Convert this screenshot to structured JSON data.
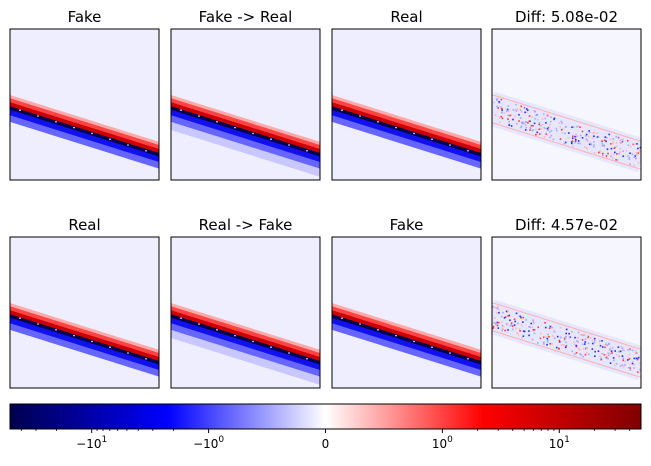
{
  "chart_data": [
    {
      "type": "heatmap",
      "panels": [
        {
          "title": "Fake",
          "kind": "band"
        },
        {
          "title": "Fake -> Real",
          "kind": "band-smeared"
        },
        {
          "title": "Real",
          "kind": "band"
        },
        {
          "title": "Diff: 5.08e-02",
          "kind": "diff"
        },
        {
          "title": "Real",
          "kind": "band"
        },
        {
          "title": "Real -> Fake",
          "kind": "band-smeared"
        },
        {
          "title": "Fake",
          "kind": "band"
        },
        {
          "title": "Diff: 4.57e-02",
          "kind": "diff"
        }
      ],
      "grid": {
        "rows": 2,
        "cols": 4
      },
      "colormap": "seismic",
      "colorbar": {
        "orientation": "horizontal",
        "scale": "symlog",
        "range": [
          -50,
          50
        ],
        "linthresh": 1,
        "ticks": [
          {
            "value": -10,
            "base": "−10",
            "exp": "1"
          },
          {
            "value": -1,
            "base": "−10",
            "exp": "0"
          },
          {
            "value": 0,
            "base": "0",
            "exp": ""
          },
          {
            "value": 1,
            "base": "10",
            "exp": "0"
          },
          {
            "value": 10,
            "base": "10",
            "exp": "1"
          }
        ]
      },
      "colors": {
        "background": "#eeeeff",
        "deep_blue": "#00004d",
        "blue": "#0000ff",
        "white": "#ffffff",
        "red": "#ff0000",
        "dark_red": "#800000"
      }
    }
  ]
}
